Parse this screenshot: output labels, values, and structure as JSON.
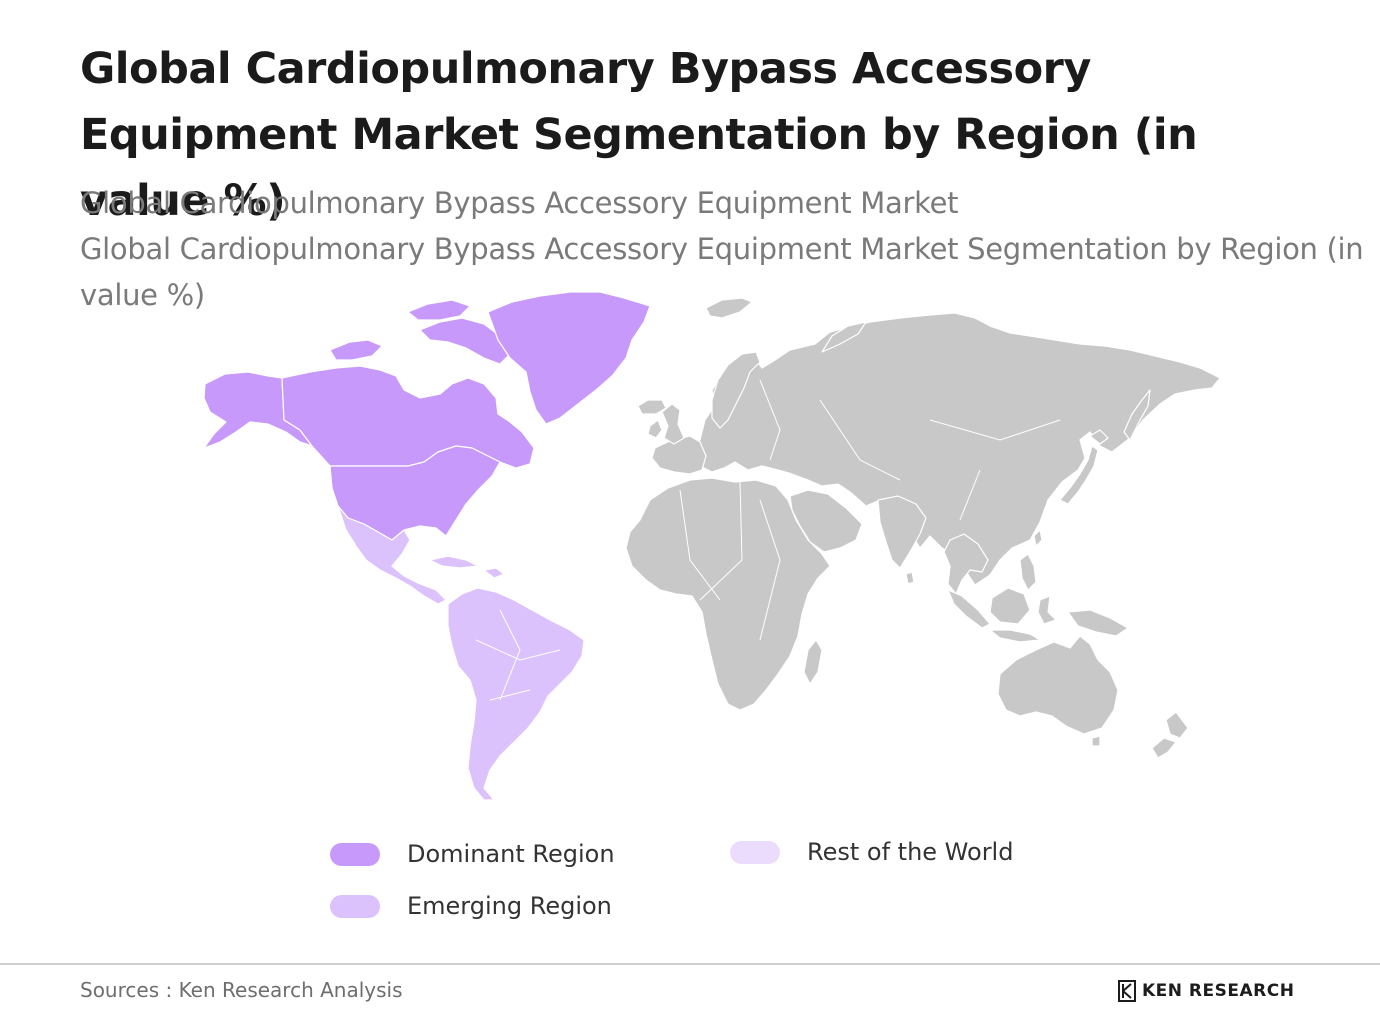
{
  "title": "Global Cardiopulmonary Bypass Accessory Equipment Market Segmentation by Region (in value %)",
  "subtitle_line1": "Global Cardiopulmonary Bypass Accessory Equipment Market",
  "subtitle_line2": "Global Cardiopulmonary Bypass Accessory Equipment Market Segmentation by Region (in value %)",
  "legend": [
    {
      "label": "Dominant Region",
      "color": "#c799fb"
    },
    {
      "label": "Emerging Region",
      "color": "#dbc2fc"
    },
    {
      "label": "Rest of the World",
      "color": "#ebdcfd"
    }
  ],
  "map_regions": {
    "north_america": {
      "category": "Dominant Region",
      "color": "#c799fb"
    },
    "greenland": {
      "category": "Dominant Region",
      "color": "#c799fb"
    },
    "latin_america": {
      "category": "Emerging Region",
      "color": "#dbc2fc"
    },
    "rest_of_world_fill": "#c8c8c8",
    "border_color": "#ffffff"
  },
  "footer": {
    "source": "Sources : Ken Research Analysis",
    "logo_text": "KEN RESEARCH",
    "logo_mark": "K"
  }
}
